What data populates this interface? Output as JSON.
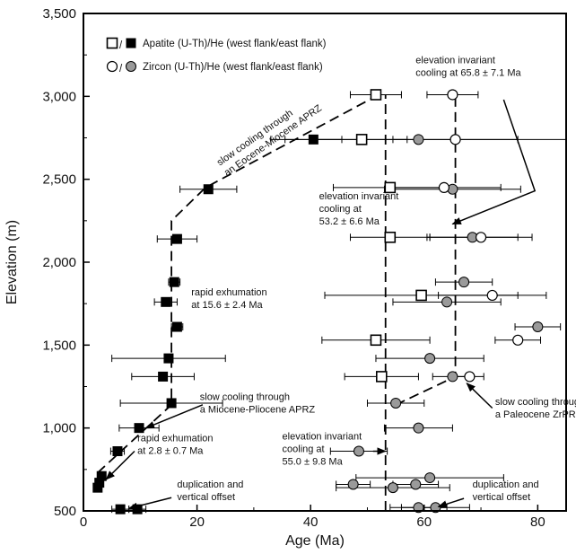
{
  "chart_data": {
    "type": "scatter",
    "xlabel": "Age (Ma)",
    "ylabel": "Elevation (m)",
    "xlim": [
      0,
      85
    ],
    "ylim": [
      500,
      3500
    ],
    "x_ticks": [
      0,
      20,
      40,
      60,
      80
    ],
    "y_ticks": [
      500,
      1000,
      1500,
      2000,
      2500,
      3000,
      3500
    ],
    "y_tick_labels": [
      "500",
      "1,000",
      "1,500",
      "2,000",
      "2,500",
      "3,000",
      "3,500"
    ],
    "grid": false,
    "legend": [
      {
        "text": "Apatite (U-Th)/He (west flank/east flank)",
        "open": "square-open",
        "filled": "square-filled"
      },
      {
        "text": "Zircon (U-Th)/He (west flank/east flank)",
        "open": "circle-open",
        "filled": "circle-filled"
      }
    ],
    "series": [
      {
        "marker": "square-filled",
        "points": [
          {
            "x": 2.5,
            "y": 640,
            "xerr": 0.4
          },
          {
            "x": 2.8,
            "y": 670,
            "xerr": 0.5
          },
          {
            "x": 3.2,
            "y": 710,
            "xerr": 0.5
          },
          {
            "x": 6.5,
            "y": 510,
            "xerr": 1.5
          },
          {
            "x": 6.0,
            "y": 860,
            "xerr": 1.2
          },
          {
            "x": 9.5,
            "y": 510,
            "xerr": 1.5
          },
          {
            "x": 9.8,
            "y": 1000,
            "xerr": 3.5
          },
          {
            "x": 15.5,
            "y": 1150,
            "xerr": 9
          },
          {
            "x": 14.0,
            "y": 1310,
            "xerr": 5.5
          },
          {
            "x": 15.0,
            "y": 1420,
            "xerr": 10
          },
          {
            "x": 16.5,
            "y": 1610,
            "xerr": 1
          },
          {
            "x": 14.5,
            "y": 1760,
            "xerr": 2
          },
          {
            "x": 16.0,
            "y": 1880,
            "xerr": 1
          },
          {
            "x": 16.5,
            "y": 2140,
            "xerr": 3.5
          },
          {
            "x": 22.0,
            "y": 2440,
            "xerr": 5
          },
          {
            "x": 40.5,
            "y": 2740,
            "xerr": 5
          }
        ]
      },
      {
        "marker": "square-open",
        "points": [
          {
            "x": 51.5,
            "y": 3010,
            "xerr": 4.5
          },
          {
            "x": 49.0,
            "y": 2740,
            "xerr": 8
          },
          {
            "x": 54.0,
            "y": 2450,
            "xerr": 10
          },
          {
            "x": 54.0,
            "y": 2150,
            "xerr": 7
          },
          {
            "x": 59.5,
            "y": 1800,
            "xerr": 17
          },
          {
            "x": 51.5,
            "y": 1530,
            "xerr": 9.5
          },
          {
            "x": 52.5,
            "y": 1310,
            "xerr": 6.5
          }
        ]
      },
      {
        "marker": "circle-filled",
        "points": [
          {
            "x": 59.0,
            "y": 2740,
            "xerr": 26
          },
          {
            "x": 65.0,
            "y": 2440,
            "xerr": 12
          },
          {
            "x": 68.5,
            "y": 2150,
            "xerr": 8
          },
          {
            "x": 67.0,
            "y": 1880,
            "xerr": 5
          },
          {
            "x": 64.0,
            "y": 1760,
            "xerr": 9.5
          },
          {
            "x": 80.0,
            "y": 1610,
            "xerr": 4
          },
          {
            "x": 61.0,
            "y": 1420,
            "xerr": 9.5
          },
          {
            "x": 65.0,
            "y": 1310,
            "xerr": 3.5
          },
          {
            "x": 55.0,
            "y": 1150,
            "xerr": 5
          },
          {
            "x": 59.0,
            "y": 1000,
            "xerr": 6
          },
          {
            "x": 48.5,
            "y": 860,
            "xerr": 5
          },
          {
            "x": 61.0,
            "y": 700,
            "xerr": 13
          },
          {
            "x": 47.5,
            "y": 660,
            "xerr": 3
          },
          {
            "x": 54.5,
            "y": 640,
            "xerr": 10
          },
          {
            "x": 58.5,
            "y": 660,
            "xerr": 4
          },
          {
            "x": 59.0,
            "y": 520,
            "xerr": 5
          },
          {
            "x": 62.0,
            "y": 520,
            "xerr": 6
          }
        ]
      },
      {
        "marker": "circle-open",
        "points": [
          {
            "x": 65.0,
            "y": 3010,
            "xerr": 4.5
          },
          {
            "x": 65.5,
            "y": 2740,
            "xerr": 11
          },
          {
            "x": 63.5,
            "y": 2450,
            "xerr": 10
          },
          {
            "x": 70.0,
            "y": 2150,
            "xerr": 9
          },
          {
            "x": 72.0,
            "y": 1800,
            "xerr": 9.5
          },
          {
            "x": 76.5,
            "y": 1530,
            "xerr": 4
          },
          {
            "x": 68.0,
            "y": 1310,
            "xerr": 2.5
          }
        ]
      }
    ],
    "lines": [
      {
        "name": "apatite-trend",
        "style": "dashed",
        "points": [
          [
            2.5,
            730
          ],
          [
            15.5,
            1140
          ],
          [
            15.5,
            2250
          ],
          [
            21.5,
            2450
          ],
          [
            52,
            3010
          ]
        ]
      },
      {
        "name": "zircon-trend",
        "style": "dashed",
        "points": [
          [
            55,
            1140
          ],
          [
            65.5,
            1310
          ],
          [
            65.5,
            3010
          ]
        ]
      },
      {
        "name": "apatite-invariant",
        "style": "dashed",
        "points": [
          [
            53.2,
            500
          ],
          [
            53.2,
            3010
          ]
        ]
      }
    ],
    "annotations": [
      {
        "lines": [
          "elevation invariant",
          "cooling at 65.8 ± 7.1 Ma"
        ],
        "x": 58.5,
        "y": 3200
      },
      {
        "lines": [
          "slow cooling through",
          "an Eocene-Miocene APRZ"
        ],
        "x": 24,
        "y": 2580,
        "rotate": -35
      },
      {
        "lines": [
          "elevation invariant",
          "cooling at",
          "53.2 ± 6.6 Ma"
        ],
        "x": 41.5,
        "y": 2380
      },
      {
        "lines": [
          "rapid exhumation",
          "at 15.6 ± 2.4 Ma"
        ],
        "x": 19,
        "y": 1800
      },
      {
        "lines": [
          "slow cooling through",
          "a Miocene-Pliocene APRZ"
        ],
        "x": 20.5,
        "y": 1170
      },
      {
        "lines": [
          "slow cooling through",
          "a Paleocene ZrPRZ"
        ],
        "x": 72.5,
        "y": 1140
      },
      {
        "lines": [
          "rapid exhumation",
          "at 2.8 ± 0.7 Ma"
        ],
        "x": 9.5,
        "y": 920
      },
      {
        "lines": [
          "elevation invariant",
          "cooling at",
          "55.0 ± 9.8 Ma"
        ],
        "x": 35,
        "y": 930
      },
      {
        "lines": [
          "duplication and",
          "vertical offset"
        ],
        "x": 16.5,
        "y": 640
      },
      {
        "lines": [
          "duplication and",
          "vertical offset"
        ],
        "x": 68.5,
        "y": 640
      }
    ],
    "arrows": [
      {
        "from": [
          74,
          2980
        ],
        "to": [
          79.5,
          2430
        ],
        "to2": [
          65,
          2230
        ]
      },
      {
        "from": [
          21,
          1140
        ],
        "to": [
          11,
          1000
        ]
      },
      {
        "from": [
          72,
          1120
        ],
        "to": [
          67.5,
          1270
        ]
      },
      {
        "from": [
          9,
          860
        ],
        "to": [
          4,
          690
        ]
      },
      {
        "from": [
          15.5,
          580
        ],
        "to": [
          8,
          515
        ]
      },
      {
        "from": [
          67,
          575
        ],
        "to": [
          62.5,
          525
        ]
      },
      {
        "from": [
          51,
          860
        ],
        "to": [
          53.2,
          860
        ]
      }
    ]
  }
}
